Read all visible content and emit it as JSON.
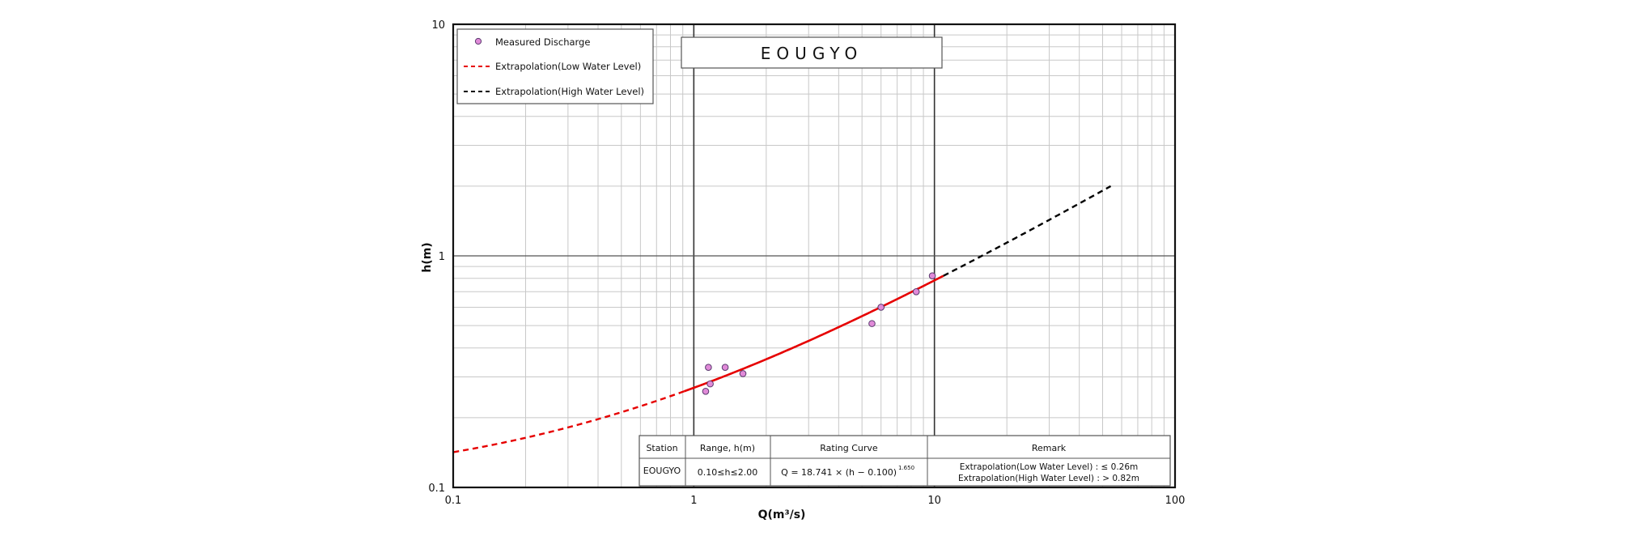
{
  "chart_data": {
    "type": "scatter",
    "title": "EOUGYO",
    "xlabel": "Q(m³/s)",
    "ylabel": "h(m)",
    "x_scale": "log",
    "y_scale": "log",
    "xlim": [
      0.1,
      100
    ],
    "ylim": [
      0.1,
      10
    ],
    "grid": true,
    "legend_position": "top-left",
    "x_ticks": [
      "0.1",
      "1",
      "10",
      "100"
    ],
    "y_ticks": [
      "0.1",
      "1",
      "10"
    ],
    "legend": {
      "measured": "Measured Discharge",
      "low": "Extrapolation(Low Water Level)",
      "high": "Extrapolation(High Water Level)"
    },
    "colors": {
      "points": "#e08ad8",
      "points_edge": "#5a3a6e",
      "low": "#e60000",
      "fit": "#e60000",
      "high": "#000000"
    },
    "series": [
      {
        "name": "Measured Discharge",
        "points": [
          [
            1.12,
            0.26
          ],
          [
            1.17,
            0.28
          ],
          [
            1.15,
            0.33
          ],
          [
            1.35,
            0.33
          ],
          [
            1.6,
            0.31
          ],
          [
            5.5,
            0.51
          ],
          [
            6.0,
            0.6
          ],
          [
            8.4,
            0.7
          ],
          [
            9.8,
            0.82
          ]
        ]
      }
    ],
    "rating_curve": {
      "a": 18.741,
      "h0": 0.1,
      "b": 1.65,
      "low_range_h": [
        0.1,
        0.26
      ],
      "fit_range_h": [
        0.26,
        0.82
      ],
      "high_range_h": [
        0.82,
        2.0
      ]
    },
    "table": {
      "headers": [
        "Station",
        "Range, h(m)",
        "Rating Curve",
        "Remark"
      ],
      "station": "EOUGYO",
      "range": "0.10≤h≤2.00",
      "curve_text": "Q = 18.741 × (h − 0.100)",
      "curve_exp": "1.650",
      "remark_low": "Extrapolation(Low Water Level) : ≤ 0.26m",
      "remark_high": "Extrapolation(High Water Level) : > 0.82m"
    }
  }
}
